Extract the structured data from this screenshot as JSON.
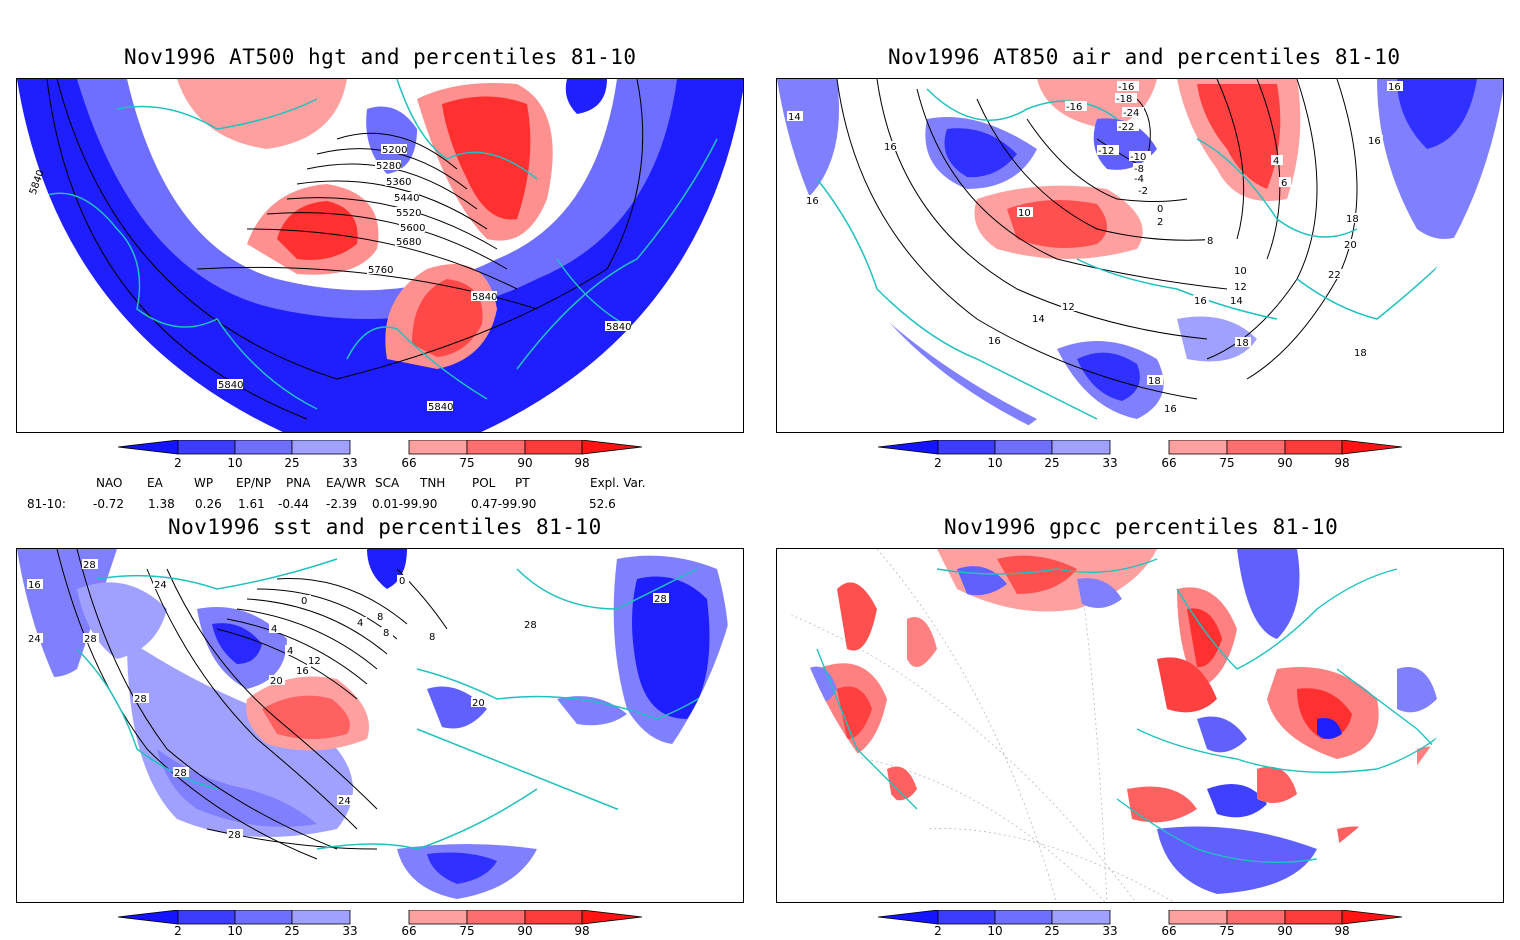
{
  "panels": [
    {
      "title": "Nov1996 AT500 hgt and percentiles 81-10",
      "contour_labels": [
        "5200",
        "5280",
        "5360",
        "5440",
        "5520",
        "5600",
        "5680",
        "5760",
        "5840",
        "5840",
        "5840",
        "5840",
        "5840"
      ]
    },
    {
      "title": "Nov1996 AT850 air and percentiles 81-10",
      "contour_labels": [
        "14",
        "16",
        "16",
        "16",
        "16",
        "-16",
        "-16",
        "-18",
        "-24",
        "-22",
        "-12",
        "-10",
        "-8",
        "-4",
        "-2",
        "0",
        "2",
        "4",
        "6",
        "8",
        "10",
        "10",
        "12",
        "12",
        "14",
        "14",
        "16",
        "16",
        "16",
        "18",
        "18",
        "18",
        "18",
        "20",
        "22"
      ]
    },
    {
      "title": "Nov1996 sst and percentiles 81-10",
      "contour_labels": [
        "28",
        "24",
        "28",
        "28",
        "24",
        "24",
        "0",
        "0",
        "4",
        "4",
        "4",
        "8",
        "8",
        "8",
        "12",
        "16",
        "20",
        "20",
        "28",
        "28",
        "28",
        "28",
        "16"
      ]
    },
    {
      "title": "Nov1996 gpcc percentiles 81-10",
      "contour_labels": []
    }
  ],
  "colorbar": {
    "labels": [
      "2",
      "10",
      "25",
      "33",
      "66",
      "75",
      "90",
      "98"
    ],
    "colors": [
      "#1414ff",
      "#3c3cff",
      "#6e6eff",
      "#a0a0ff",
      "#ffffff",
      "#ffa0a0",
      "#ff6e6e",
      "#ff3c3c",
      "#ff1414"
    ]
  },
  "teleconnections": {
    "headers": [
      "NAO",
      "EA",
      "WP",
      "EP/NP",
      "PNA",
      "EA/WR",
      "SCA",
      "TNH",
      "POL",
      "PT",
      "Expl. Var."
    ],
    "row_label": "81-10:",
    "values": [
      "-0.72",
      "1.38",
      "0.26",
      "1.61",
      "-0.44",
      "-2.39",
      "0.01-99.90",
      "0.47-99.90",
      "52.6"
    ]
  }
}
